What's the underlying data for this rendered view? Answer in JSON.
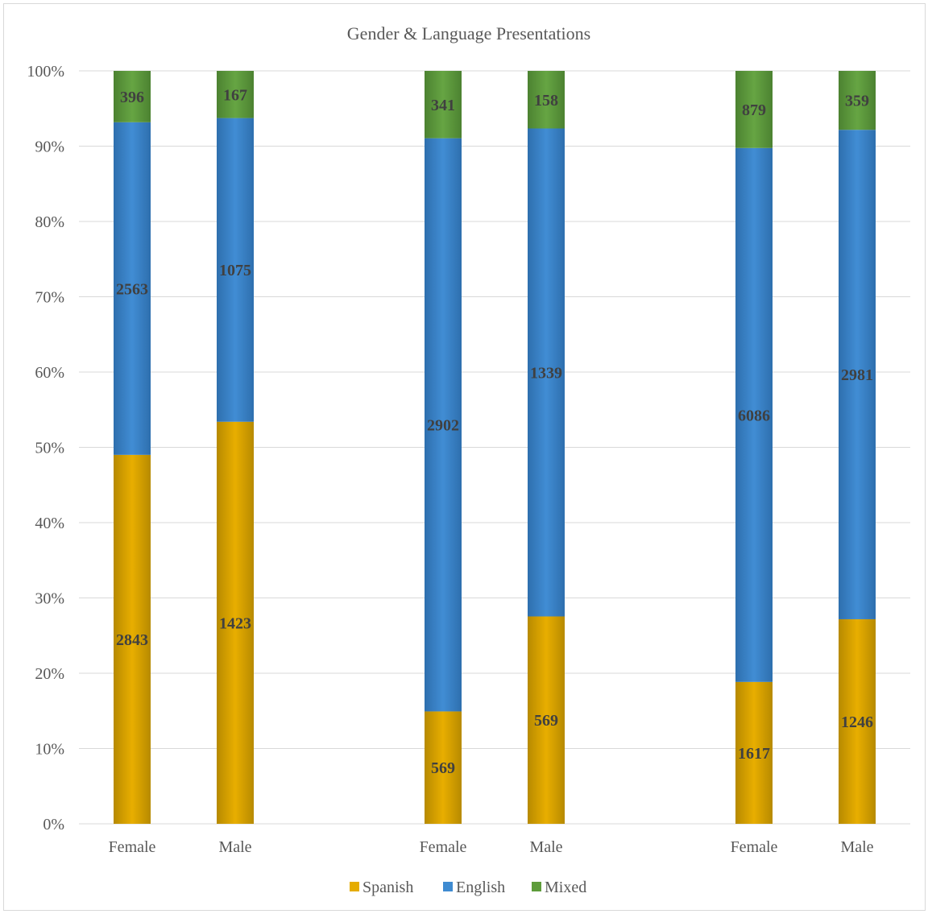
{
  "chart_data": {
    "type": "bar",
    "stacked": "percent",
    "title": "Gender & Language Presentations",
    "xlabel": "",
    "ylabel": "",
    "ylim": [
      0,
      100
    ],
    "yticks": [
      "0%",
      "10%",
      "20%",
      "30%",
      "40%",
      "50%",
      "60%",
      "70%",
      "80%",
      "90%",
      "100%"
    ],
    "categories": [
      "Female",
      "Male",
      "Female",
      "Male",
      "Female",
      "Male"
    ],
    "series": [
      {
        "name": "Spanish",
        "values": [
          2843,
          1423,
          569,
          569,
          1617,
          1246
        ]
      },
      {
        "name": "English",
        "values": [
          2563,
          1075,
          2902,
          1339,
          6086,
          2981
        ]
      },
      {
        "name": "Mixed",
        "values": [
          396,
          167,
          341,
          158,
          879,
          359
        ]
      }
    ],
    "legend_position": "bottom",
    "grid": true,
    "colors": {
      "Spanish": "#e5ac00",
      "English": "#3f8bd1",
      "Mixed": "#5e9c3b"
    }
  }
}
